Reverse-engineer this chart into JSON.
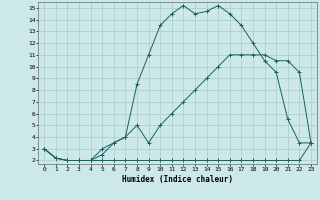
{
  "xlabel": "Humidex (Indice chaleur)",
  "bg_color": "#cce8e8",
  "grid_color": "#aacccc",
  "line_color": "#1a6060",
  "xlim": [
    -0.5,
    23.5
  ],
  "ylim": [
    1.7,
    15.5
  ],
  "x_ticks": [
    0,
    1,
    2,
    3,
    4,
    5,
    6,
    7,
    8,
    9,
    10,
    11,
    12,
    13,
    14,
    15,
    16,
    17,
    18,
    19,
    20,
    21,
    22,
    23
  ],
  "y_ticks": [
    2,
    3,
    4,
    5,
    6,
    7,
    8,
    9,
    10,
    11,
    12,
    13,
    14,
    15
  ],
  "series1_x": [
    0,
    1,
    2,
    3,
    4,
    5,
    6,
    7,
    8,
    9,
    10,
    11,
    12,
    13,
    14,
    15,
    16,
    17,
    18,
    19,
    20,
    21,
    22,
    23
  ],
  "series1_y": [
    3.0,
    2.2,
    2.0,
    2.0,
    2.0,
    2.0,
    2.0,
    2.0,
    2.0,
    2.0,
    2.0,
    2.0,
    2.0,
    2.0,
    2.0,
    2.0,
    2.0,
    2.0,
    2.0,
    2.0,
    2.0,
    2.0,
    2.0,
    3.5
  ],
  "series2_x": [
    0,
    1,
    2,
    3,
    4,
    5,
    6,
    7,
    8,
    9,
    10,
    11,
    12,
    13,
    14,
    15,
    16,
    17,
    18,
    19,
    20,
    21,
    22,
    23
  ],
  "series2_y": [
    3.0,
    2.2,
    2.0,
    2.0,
    2.0,
    3.0,
    3.5,
    4.0,
    8.5,
    11.0,
    13.5,
    14.5,
    15.2,
    14.5,
    14.7,
    15.2,
    14.5,
    13.5,
    12.0,
    10.5,
    9.5,
    5.5,
    3.5,
    3.5
  ],
  "series3_x": [
    0,
    1,
    2,
    3,
    4,
    5,
    6,
    7,
    8,
    9,
    10,
    11,
    12,
    13,
    14,
    15,
    16,
    17,
    18,
    19,
    20,
    21,
    22,
    23
  ],
  "series3_y": [
    3.0,
    2.2,
    2.0,
    2.0,
    2.0,
    2.5,
    3.5,
    4.0,
    5.0,
    3.5,
    5.0,
    6.0,
    7.0,
    8.0,
    9.0,
    10.0,
    11.0,
    11.0,
    11.0,
    11.0,
    10.5,
    10.5,
    9.5,
    3.5
  ]
}
